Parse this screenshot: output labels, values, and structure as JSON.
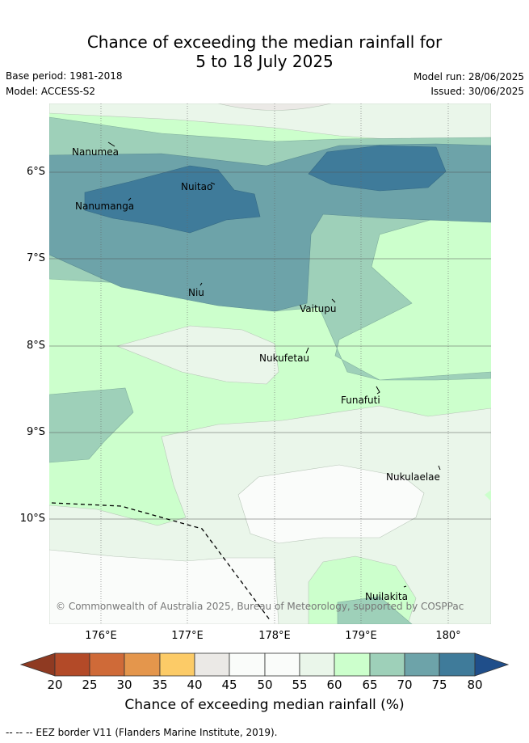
{
  "title_line1": "Chance of exceeding the median rainfall for",
  "title_line2": "5 to 18 July 2025",
  "base_period": "Base period: 1981-2018",
  "model": "Model: ACCESS-S2",
  "model_run": "Model run: 28/06/2025",
  "issued": "Issued: 30/06/2025",
  "lat_ticks": [
    "6°S",
    "7°S",
    "8°S",
    "9°S",
    "10°S"
  ],
  "lon_ticks": [
    "176°E",
    "177°E",
    "178°E",
    "179°E",
    "180°"
  ],
  "places": [
    "Nanumea",
    "Nuitao",
    "Nanumanga",
    "Niu",
    "Vaitupu",
    "Nukufetau",
    "Funafuti",
    "Nukulaelae",
    "Nuilakita"
  ],
  "copyright": "© Commonwealth of Australia 2025, Bureau of Meteorology, supported by COSPPac",
  "colorbar_ticks": [
    "20",
    "25",
    "30",
    "35",
    "40",
    "45",
    "50",
    "55",
    "60",
    "65",
    "70",
    "75",
    "80"
  ],
  "colorbar_label": "Chance of exceeding median rainfall (%)",
  "footer": "-- -- -- EEZ border V11 (Flanders Marine Institute, 2019).",
  "colors": {
    "c20": "#b34a28",
    "c25": "#cf6a38",
    "c30": "#e4964c",
    "c35": "#fccb67",
    "c40": "#ebe9e6",
    "c45": "#fafcfa",
    "c50": "#fafcfa",
    "c55": "#eaf6ea",
    "c60": "#ccffcc",
    "c65": "#9ed0b9",
    "c70": "#6da3a9",
    "c75": "#3f7b9a",
    "c80": "#1f4e8a"
  }
}
